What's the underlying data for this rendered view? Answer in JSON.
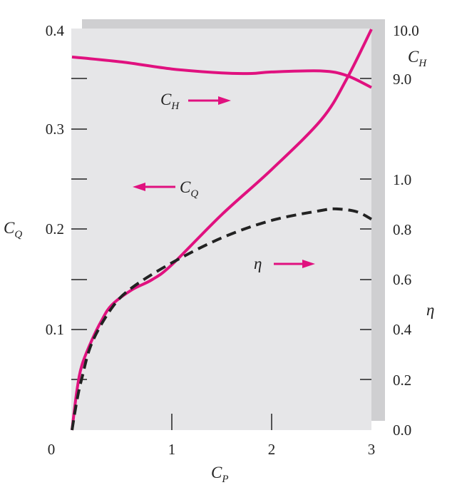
{
  "chart_data": {
    "type": "line",
    "title": "",
    "xlabel": "C_P",
    "xlim": [
      0,
      3
    ],
    "x_ticks": [
      "0",
      "1",
      "2",
      "3"
    ],
    "left_axis": {
      "label": "C_Q",
      "ylim": [
        0,
        0.4
      ],
      "ticks": [
        "0.1",
        "0.2",
        "0.3",
        "0.4"
      ]
    },
    "right_axis_eta": {
      "label": "η",
      "range": [
        0,
        1.0
      ],
      "ticks": [
        "0.0",
        "0.2",
        "0.4",
        "0.6",
        "0.8",
        "1.0"
      ]
    },
    "right_axis_ch": {
      "label": "C_H",
      "range": [
        9.0,
        10.0
      ],
      "ticks": [
        "9.0",
        "10.0"
      ]
    },
    "grid": false,
    "series": [
      {
        "name": "C_Q",
        "axis": "left",
        "style": "solid",
        "color": "#e0117f",
        "x": [
          0,
          0.05,
          0.1,
          0.2,
          0.3,
          0.4,
          0.6,
          0.8,
          1.0,
          1.5,
          2.0,
          2.5,
          2.75,
          3.0
        ],
        "y": [
          0,
          0.04,
          0.065,
          0.09,
          0.11,
          0.125,
          0.14,
          0.15,
          0.165,
          0.215,
          0.26,
          0.31,
          0.35,
          0.4
        ]
      },
      {
        "name": "C_H",
        "axis": "right_ch",
        "style": "solid",
        "color": "#e0117f",
        "x": [
          0,
          0.5,
          1.0,
          1.5,
          1.8,
          2.0,
          2.5,
          2.75,
          3.0
        ],
        "y": [
          9.43,
          9.33,
          9.19,
          9.11,
          9.1,
          9.13,
          9.15,
          9.06,
          8.82
        ]
      },
      {
        "name": "η",
        "axis": "right_eta",
        "style": "dashed",
        "color": "#222222",
        "x": [
          0,
          0.05,
          0.1,
          0.2,
          0.4,
          0.6,
          1.0,
          1.5,
          2.0,
          2.5,
          2.65,
          2.85,
          3.0
        ],
        "y": [
          0,
          0.12,
          0.21,
          0.35,
          0.49,
          0.57,
          0.67,
          0.77,
          0.84,
          0.88,
          0.886,
          0.875,
          0.845
        ]
      }
    ],
    "annotations": [
      {
        "text": "C_H",
        "arrow": "right"
      },
      {
        "text": "C_Q",
        "arrow": "left"
      },
      {
        "text": "η",
        "arrow": "right"
      }
    ],
    "colors": {
      "plot_bg": "#e6e6e8",
      "shadow": "#cfcfd1",
      "accent": "#e0117f"
    }
  }
}
